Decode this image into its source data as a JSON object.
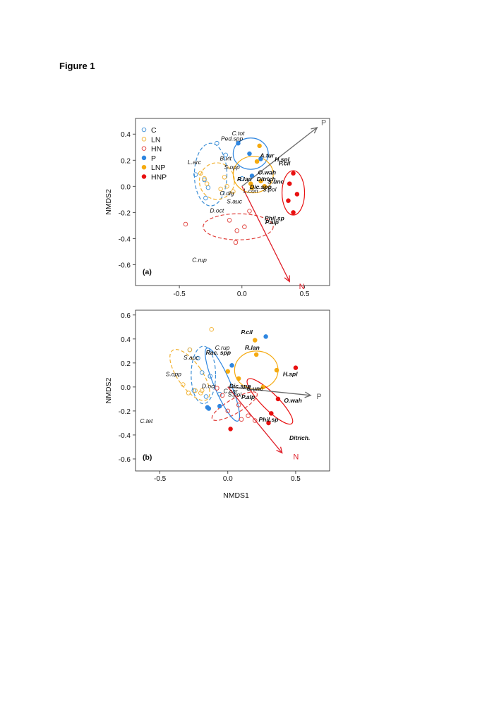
{
  "figure_title": "Figure 1",
  "colors": {
    "C": "#3d8fd6",
    "LN": "#f2b232",
    "HN": "#e0403b",
    "P": "#2f86e0",
    "LNP": "#f5aa10",
    "HNP": "#e81010",
    "vector": "#6b6b6b",
    "n_vector": "#e0202a"
  },
  "legend": [
    {
      "label": "C",
      "group": "C",
      "filled": false
    },
    {
      "label": "LN",
      "group": "LN",
      "filled": false
    },
    {
      "label": "HN",
      "group": "HN",
      "filled": false
    },
    {
      "label": "P",
      "group": "P",
      "filled": true
    },
    {
      "label": "LNP",
      "group": "LNP",
      "filled": true
    },
    {
      "label": "HNP",
      "group": "HNP",
      "filled": true
    }
  ],
  "chart_data": [
    {
      "type": "scatter",
      "panel_label": "(a)",
      "xlabel": "",
      "ylabel": "NMDS2",
      "xlim": [
        -0.85,
        0.7
      ],
      "ylim": [
        -0.76,
        0.52
      ],
      "x_ticks": [
        -0.5,
        0.0,
        0.5
      ],
      "x_tick_labels": [
        "-0.5",
        "0.0",
        "0.5"
      ],
      "y_ticks": [
        0.4,
        0.2,
        0.0,
        -0.2,
        -0.4,
        -0.6
      ],
      "y_tick_labels": [
        "0.4",
        "0.2",
        "0.0",
        "-0.2",
        "-0.4",
        "-0.6"
      ],
      "legend_position": "top-left",
      "points": {
        "C": [
          [
            -0.2,
            0.33
          ],
          [
            -0.37,
            0.09
          ],
          [
            -0.3,
            0.05
          ],
          [
            -0.27,
            -0.01
          ],
          [
            -0.29,
            -0.09
          ],
          [
            -0.13,
            0.24
          ],
          [
            0.0,
            0.06
          ]
        ],
        "LN": [
          [
            -0.33,
            0.1
          ],
          [
            -0.3,
            0.06
          ],
          [
            -0.28,
            0.02
          ],
          [
            -0.17,
            -0.02
          ],
          [
            -0.12,
            0.0
          ],
          [
            -0.07,
            -0.04
          ],
          [
            -0.14,
            0.07
          ]
        ],
        "HN": [
          [
            -0.45,
            -0.29
          ],
          [
            -0.1,
            -0.26
          ],
          [
            -0.04,
            -0.34
          ],
          [
            0.02,
            -0.31
          ],
          [
            0.06,
            -0.19
          ],
          [
            -0.05,
            -0.43
          ]
        ],
        "P": [
          [
            -0.03,
            0.33
          ],
          [
            0.06,
            0.25
          ],
          [
            0.15,
            0.21
          ],
          [
            0.08,
            0.08
          ]
        ],
        "LNP": [
          [
            0.14,
            0.31
          ],
          [
            0.12,
            0.19
          ],
          [
            0.07,
            0.02
          ],
          [
            0.15,
            0.04
          ],
          [
            0.18,
            0.0
          ],
          [
            0.08,
            -0.01
          ]
        ],
        "HNP": [
          [
            0.41,
            0.1
          ],
          [
            0.38,
            0.02
          ],
          [
            0.44,
            -0.06
          ],
          [
            0.37,
            -0.11
          ],
          [
            0.41,
            -0.2
          ]
        ]
      },
      "ellipses": [
        {
          "group": "C",
          "center": [
            -0.25,
            0.09
          ],
          "rx": 0.13,
          "ry": 0.24,
          "rotation": 0,
          "dashed": true
        },
        {
          "group": "LN",
          "center": [
            -0.2,
            0.04
          ],
          "rx": 0.14,
          "ry": 0.14,
          "rotation": 0,
          "dashed": true
        },
        {
          "group": "HN",
          "center": [
            -0.03,
            -0.31
          ],
          "rx": 0.28,
          "ry": 0.1,
          "rotation": 0,
          "dashed": true
        },
        {
          "group": "P",
          "center": [
            0.07,
            0.25
          ],
          "rx": 0.14,
          "ry": 0.12,
          "rotation": 0,
          "dashed": false
        },
        {
          "group": "LNP",
          "center": [
            0.09,
            0.09
          ],
          "rx": 0.16,
          "ry": 0.14,
          "rotation": 0,
          "dashed": false
        },
        {
          "group": "HNP",
          "center": [
            0.41,
            -0.05
          ],
          "rx": 0.09,
          "ry": 0.17,
          "rotation": 0,
          "dashed": false
        }
      ],
      "vectors": [
        {
          "label": "P",
          "from": [
            0.0,
            0.0
          ],
          "to": [
            0.6,
            0.45
          ],
          "color": "vector"
        },
        {
          "label": "N",
          "from": [
            0.0,
            0.0
          ],
          "to": [
            0.38,
            -0.73
          ],
          "color": "n_vector"
        }
      ],
      "species_labels": [
        {
          "text": "C.tot",
          "x": -0.03,
          "y": 0.39,
          "bold": false
        },
        {
          "text": "Ped.spp",
          "x": -0.08,
          "y": 0.35,
          "bold": false
        },
        {
          "text": "L.arc",
          "x": -0.38,
          "y": 0.17,
          "bold": false
        },
        {
          "text": "B.vit",
          "x": -0.13,
          "y": 0.2,
          "bold": false
        },
        {
          "text": "S.opp",
          "x": -0.08,
          "y": 0.13,
          "bold": false
        },
        {
          "text": "A.tur",
          "x": 0.2,
          "y": 0.22,
          "bold": true
        },
        {
          "text": "H.spl",
          "x": 0.32,
          "y": 0.19,
          "bold": true
        },
        {
          "text": "P.cil",
          "x": 0.34,
          "y": 0.16,
          "bold": true
        },
        {
          "text": "R.lan",
          "x": 0.02,
          "y": 0.04,
          "bold": true
        },
        {
          "text": "O.wah",
          "x": 0.2,
          "y": 0.09,
          "bold": true
        },
        {
          "text": "Ditrich.",
          "x": 0.2,
          "y": 0.04,
          "bold": true
        },
        {
          "text": "S.unc",
          "x": 0.27,
          "y": 0.02,
          "bold": true
        },
        {
          "text": "Dic.spp",
          "x": 0.15,
          "y": -0.02,
          "bold": true
        },
        {
          "text": "S.pol",
          "x": 0.22,
          "y": -0.04,
          "bold": false
        },
        {
          "text": "O.dig",
          "x": -0.12,
          "y": -0.07,
          "bold": false
        },
        {
          "text": "L.con",
          "x": 0.07,
          "y": -0.05,
          "bold": false
        },
        {
          "text": "S.auc",
          "x": -0.06,
          "y": -0.13,
          "bold": false
        },
        {
          "text": "D.oct",
          "x": -0.2,
          "y": -0.2,
          "bold": false
        },
        {
          "text": "Phil.sp",
          "x": 0.26,
          "y": -0.26,
          "bold": true
        },
        {
          "text": "P.alp",
          "x": 0.24,
          "y": -0.29,
          "bold": true
        },
        {
          "text": "C.rup",
          "x": -0.34,
          "y": -0.58,
          "bold": false
        }
      ]
    },
    {
      "type": "scatter",
      "panel_label": "(b)",
      "xlabel": "NMDS1",
      "ylabel": "NMDS2",
      "xlim": [
        -0.68,
        0.75
      ],
      "ylim": [
        -0.7,
        0.64
      ],
      "x_ticks": [
        -0.5,
        0.0,
        0.5
      ],
      "x_tick_labels": [
        "-0.5",
        "0.0",
        "0.5"
      ],
      "y_ticks": [
        0.6,
        0.4,
        0.2,
        0.0,
        -0.2,
        -0.4,
        -0.6
      ],
      "y_tick_labels": [
        "0.6",
        "0.4",
        "0.2",
        "0.0",
        "-0.2",
        "-0.4",
        "-0.6"
      ],
      "points": {
        "C": [
          [
            -0.28,
            0.31
          ],
          [
            -0.22,
            0.24
          ],
          [
            -0.19,
            0.12
          ],
          [
            -0.13,
            0.09
          ],
          [
            -0.25,
            -0.03
          ],
          [
            -0.16,
            -0.08
          ],
          [
            -0.06,
            -0.06
          ]
        ],
        "LN": [
          [
            -0.12,
            0.48
          ],
          [
            -0.28,
            0.31
          ],
          [
            -0.33,
            0.02
          ],
          [
            -0.24,
            -0.03
          ],
          [
            -0.29,
            -0.05
          ],
          [
            -0.19,
            -0.03
          ],
          [
            -0.2,
            -0.05
          ]
        ],
        "HN": [
          [
            -0.08,
            -0.01
          ],
          [
            -0.04,
            -0.07
          ],
          [
            0.08,
            -0.15
          ],
          [
            0.0,
            -0.2
          ],
          [
            0.1,
            -0.27
          ],
          [
            0.15,
            -0.24
          ],
          [
            0.2,
            -0.28
          ]
        ],
        "P": [
          [
            0.28,
            0.42
          ],
          [
            0.03,
            0.18
          ],
          [
            -0.15,
            -0.17
          ],
          [
            -0.14,
            -0.18
          ],
          [
            -0.06,
            -0.16
          ]
        ],
        "LNP": [
          [
            0.2,
            0.39
          ],
          [
            0.21,
            0.27
          ],
          [
            0.0,
            0.13
          ],
          [
            0.08,
            0.07
          ],
          [
            0.36,
            0.14
          ],
          [
            0.26,
            0.0
          ]
        ],
        "HNP": [
          [
            0.5,
            0.16
          ],
          [
            0.37,
            -0.1
          ],
          [
            0.32,
            -0.22
          ],
          [
            0.3,
            -0.3
          ],
          [
            0.02,
            -0.35
          ]
        ]
      },
      "ellipses": [
        {
          "group": "C",
          "center": [
            -0.18,
            0.1
          ],
          "rx": 0.09,
          "ry": 0.24,
          "rotation": 0,
          "dashed": true
        },
        {
          "group": "LN",
          "center": [
            -0.28,
            0.1
          ],
          "rx": 0.09,
          "ry": 0.25,
          "rotation": 35,
          "dashed": true
        },
        {
          "group": "HN",
          "center": [
            0.05,
            -0.16
          ],
          "rx": 0.19,
          "ry": 0.06,
          "rotation": 30,
          "dashed": true
        },
        {
          "group": "P",
          "center": [
            -0.04,
            0.02
          ],
          "rx": 0.06,
          "ry": 0.33,
          "rotation": 23,
          "dashed": false
        },
        {
          "group": "LNP",
          "center": [
            0.21,
            0.14
          ],
          "rx": 0.16,
          "ry": 0.16,
          "rotation": 0,
          "dashed": false
        },
        {
          "group": "HNP",
          "center": [
            0.31,
            -0.12
          ],
          "rx": 0.06,
          "ry": 0.26,
          "rotation": 45,
          "dashed": false
        }
      ],
      "vectors": [
        {
          "label": "P",
          "from": [
            0.0,
            0.0
          ],
          "to": [
            0.61,
            -0.07
          ],
          "color": "vector"
        },
        {
          "label": "N",
          "from": [
            0.0,
            0.0
          ],
          "to": [
            0.4,
            -0.55
          ],
          "color": "n_vector"
        }
      ],
      "species_labels": [
        {
          "text": "P.cil",
          "x": 0.14,
          "y": 0.44,
          "bold": true
        },
        {
          "text": "C.rup",
          "x": -0.04,
          "y": 0.31,
          "bold": false
        },
        {
          "text": "R.lan",
          "x": 0.18,
          "y": 0.31,
          "bold": true
        },
        {
          "text": "Rac. spp",
          "x": -0.07,
          "y": 0.27,
          "bold": true
        },
        {
          "text": "S.auc",
          "x": -0.27,
          "y": 0.23,
          "bold": false
        },
        {
          "text": "S.opp",
          "x": -0.4,
          "y": 0.09,
          "bold": false
        },
        {
          "text": "H.spl",
          "x": 0.46,
          "y": 0.09,
          "bold": true
        },
        {
          "text": "D.oct",
          "x": -0.14,
          "y": -0.01,
          "bold": false
        },
        {
          "text": "Dic.spp",
          "x": 0.09,
          "y": -0.01,
          "bold": true
        },
        {
          "text": "S.unc",
          "x": 0.2,
          "y": -0.03,
          "bold": true
        },
        {
          "text": "C.car",
          "x": 0.02,
          "y": -0.05,
          "bold": false
        },
        {
          "text": "S.pol",
          "x": 0.05,
          "y": -0.08,
          "bold": false
        },
        {
          "text": "P.alp",
          "x": 0.15,
          "y": -0.1,
          "bold": true
        },
        {
          "text": "O.wah",
          "x": 0.48,
          "y": -0.13,
          "bold": true
        },
        {
          "text": "C.tet",
          "x": -0.6,
          "y": -0.3,
          "bold": false
        },
        {
          "text": "Phil.sp",
          "x": 0.3,
          "y": -0.29,
          "bold": true
        },
        {
          "text": "Ditrich.",
          "x": 0.53,
          "y": -0.44,
          "bold": true
        }
      ]
    }
  ]
}
